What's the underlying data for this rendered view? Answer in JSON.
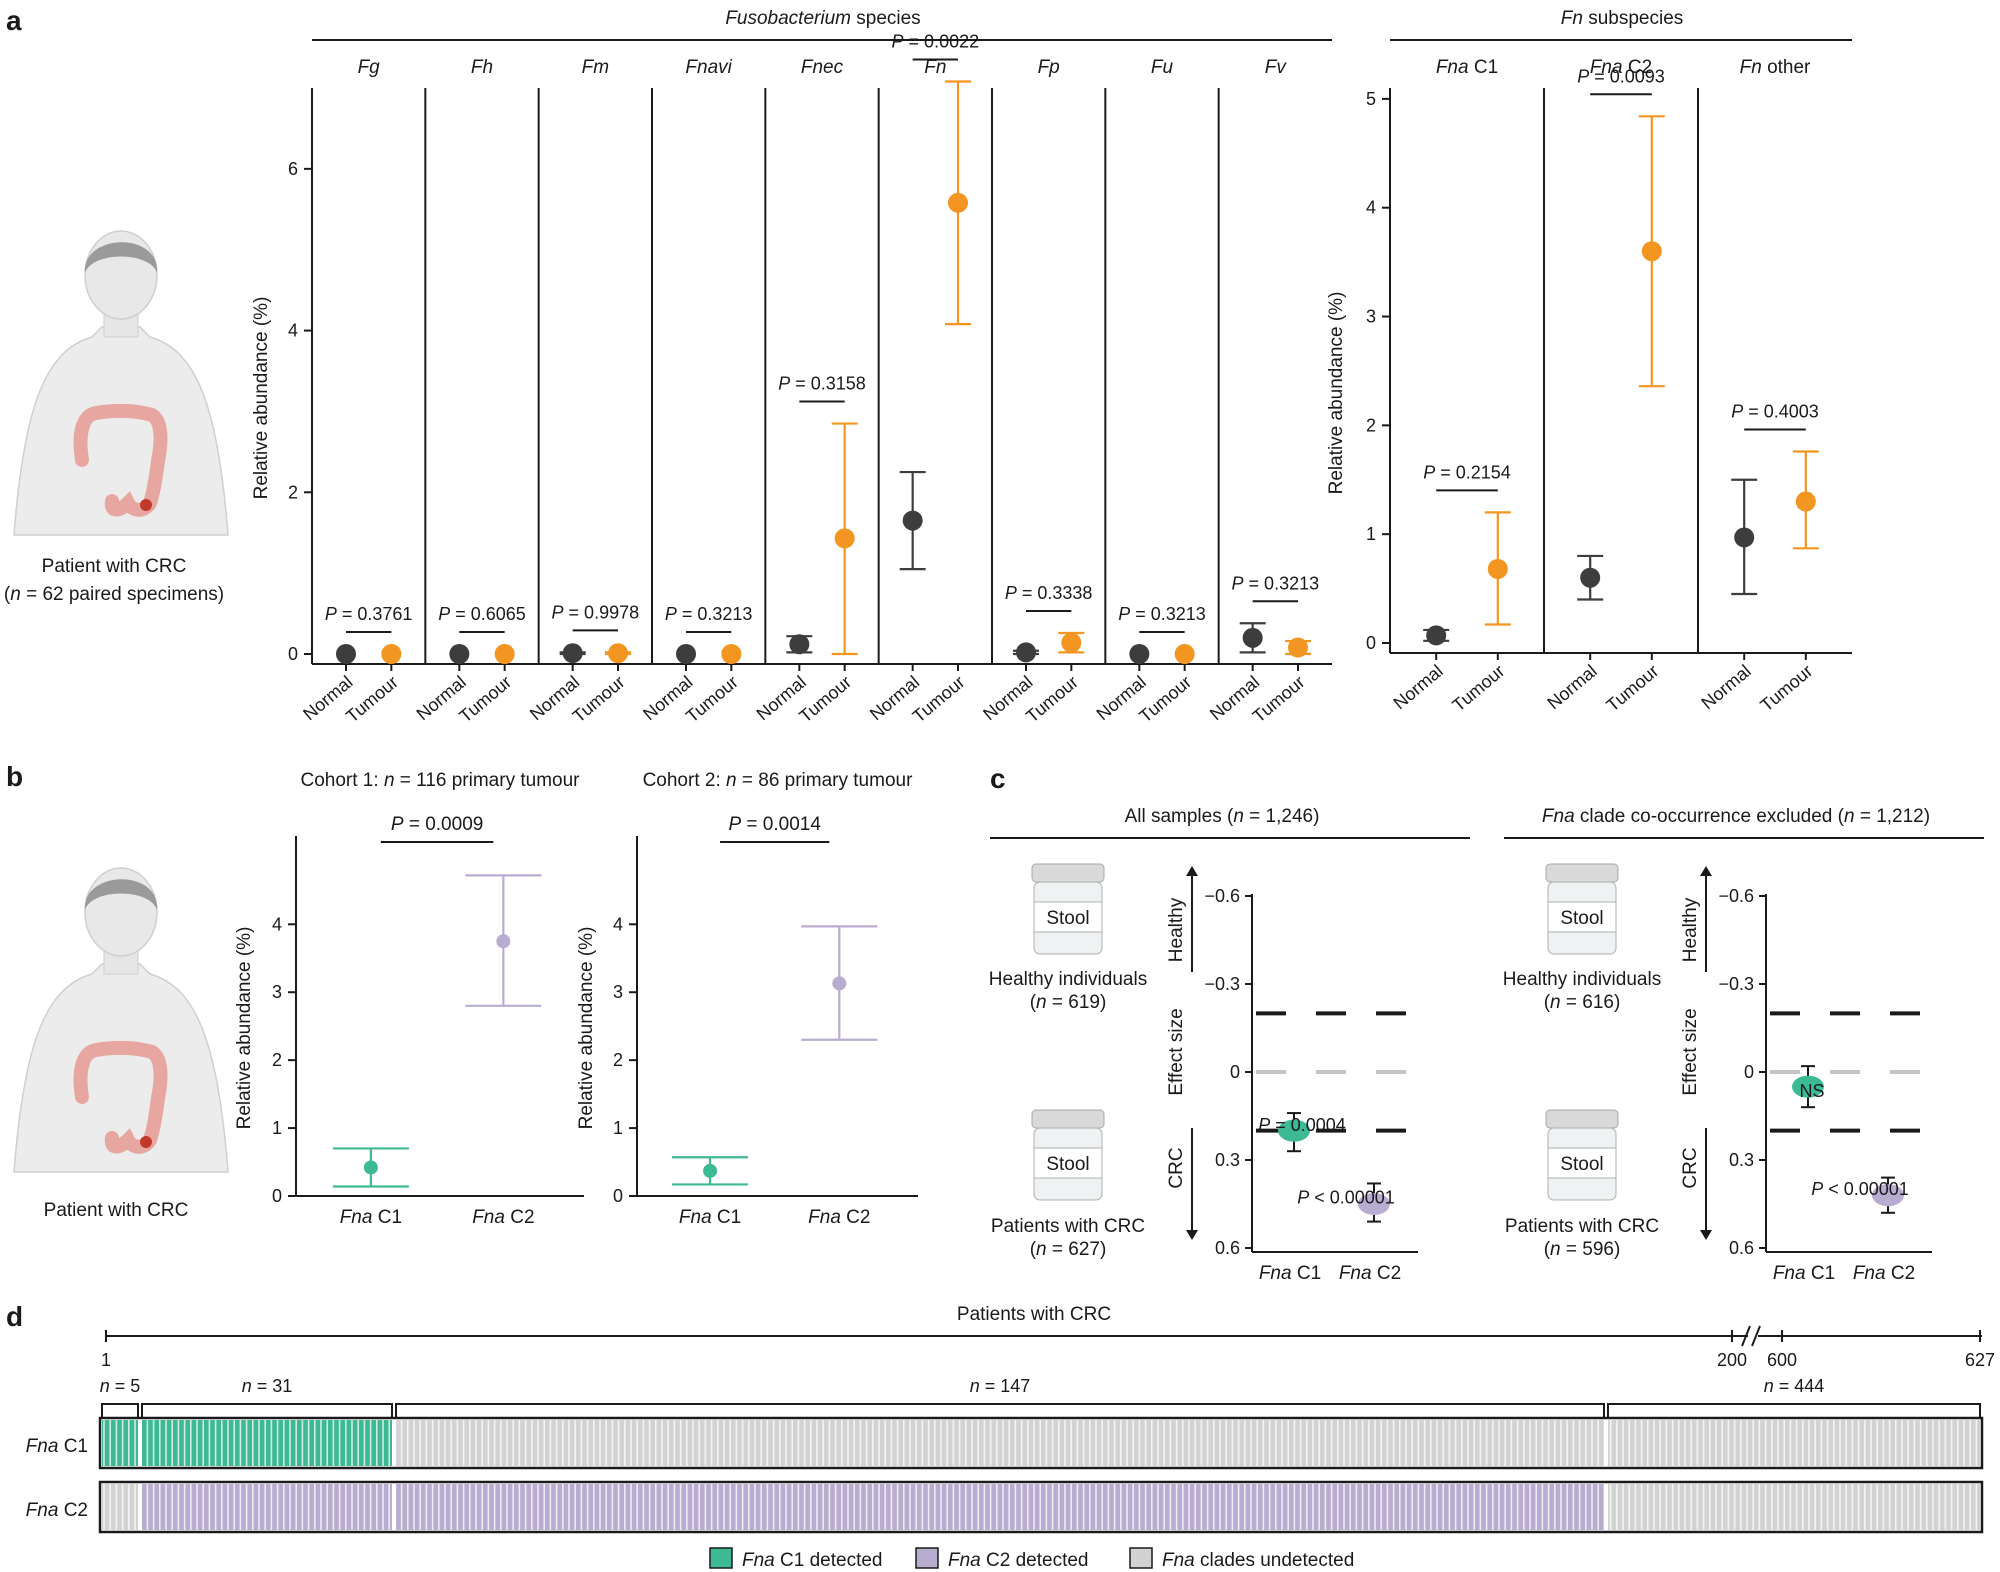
{
  "panels": {
    "a": "a",
    "b": "b",
    "c": "c",
    "d": "d"
  },
  "panel_a": {
    "species_header": {
      "italic": "Fusobacterium",
      "rest": " species"
    },
    "subspecies_header": {
      "italic": "Fn",
      "rest": " subspecies"
    },
    "ylabel": "Relative abundance (%)",
    "patient_label": "Patient with CRC",
    "patient_n": {
      "open": "(",
      "italic": "n",
      "rest": " = 62 paired specimens)"
    },
    "group_labels": [
      "Normal",
      "Tumour"
    ]
  },
  "panel_b": {
    "patient_label": "Patient with CRC",
    "ylabel": "Relative abundance (%)"
  },
  "panel_c": {
    "groups": [
      {
        "title": {
          "italic": "",
          "rest": "All samples (",
          "n_italic": "n",
          "n_rest": " = 1,246)"
        },
        "healthy_label": "Healthy individuals",
        "healthy_n": {
          "open": "(",
          "italic": "n",
          "rest": " = 619)"
        },
        "crc_label": "Patients with CRC",
        "crc_n": {
          "open": "(",
          "italic": "n",
          "rest": " = 627)"
        }
      },
      {
        "title": {
          "italic": "Fna",
          "rest": " clade co-occurrence excluded (",
          "n_italic": "n",
          "n_rest": " = 1,212)"
        },
        "healthy_label": "Healthy individuals",
        "healthy_n": {
          "open": "(",
          "italic": "n",
          "rest": " = 616)"
        },
        "crc_label": "Patients with CRC",
        "crc_n": {
          "open": "(",
          "italic": "n",
          "rest": " = 596)"
        }
      }
    ],
    "stool_label": "Stool",
    "axis_top": "Healthy",
    "axis_mid": "Effect size",
    "axis_bottom": "CRC"
  },
  "panel_d": {
    "title": "Patients with CRC",
    "axis_ticks": [
      "1",
      "200",
      "600",
      "627"
    ],
    "segments": [
      {
        "n_italic": "n",
        "rest": " = 5"
      },
      {
        "n_italic": "n",
        "rest": " = 31"
      },
      {
        "n_italic": "n",
        "rest": " = 147"
      },
      {
        "n_italic": "n",
        "rest": " = 444"
      }
    ],
    "rows": [
      {
        "italic": "Fna",
        "rest": " C1"
      },
      {
        "italic": "Fna",
        "rest": " C2"
      }
    ],
    "legend": [
      {
        "italic": "Fna",
        "rest": " C1 detected",
        "color": "#3dba94"
      },
      {
        "italic": "Fna",
        "rest": " C2 detected",
        "color": "#b8acd1"
      },
      {
        "italic": "Fna",
        "rest": " clades undetected",
        "color": "#d2d2d2"
      }
    ]
  },
  "chart_data": [
    {
      "id": "a-species",
      "type": "scatter",
      "title": "Fusobacterium species",
      "ylabel": "Relative abundance (%)",
      "ylim": [
        -0.1,
        7.8
      ],
      "yticks": [
        0,
        2,
        4,
        6
      ],
      "categories": [
        "Fg",
        "Fh",
        "Fm",
        "Fnavi",
        "Fnec",
        "Fn",
        "Fp",
        "Fu",
        "Fv"
      ],
      "series": [
        {
          "name": "Normal",
          "color": "#3d3d3d",
          "values": [
            0.0,
            0.0,
            0.01,
            0.0,
            0.12,
            1.65,
            0.02,
            0.0,
            0.2
          ],
          "lower": [
            0.0,
            0.0,
            0.0,
            0.0,
            0.02,
            1.05,
            0.0,
            0.0,
            0.02
          ],
          "upper": [
            0.0,
            0.0,
            0.02,
            0.0,
            0.22,
            2.25,
            0.04,
            0.0,
            0.38
          ]
        },
        {
          "name": "Tumour",
          "color": "#f39521",
          "values": [
            0.0,
            0.0,
            0.01,
            0.0,
            1.43,
            5.58,
            0.14,
            0.0,
            0.08
          ],
          "lower": [
            0.0,
            0.0,
            0.0,
            0.0,
            0.0,
            4.08,
            0.02,
            0.0,
            0.0
          ],
          "upper": [
            0.0,
            0.0,
            0.02,
            0.0,
            2.85,
            7.08,
            0.26,
            0.0,
            0.16
          ]
        }
      ],
      "pvalues": [
        "0.3761",
        "0.6065",
        "0.9978",
        "0.3213",
        "0.3158",
        "0.0022",
        "0.3338",
        "0.3213",
        "0.3213"
      ]
    },
    {
      "id": "a-subspecies",
      "type": "scatter",
      "title": "Fn subspecies",
      "ylabel": "Relative abundance (%)",
      "ylim": [
        -0.1,
        5.5
      ],
      "yticks": [
        0,
        1,
        2,
        3,
        4,
        5
      ],
      "categories": [
        "Fna C1",
        "Fna C2",
        "Fn other"
      ],
      "series": [
        {
          "name": "Normal",
          "color": "#3d3d3d",
          "values": [
            0.07,
            0.6,
            0.97
          ],
          "lower": [
            0.02,
            0.4,
            0.45
          ],
          "upper": [
            0.12,
            0.8,
            1.5
          ]
        },
        {
          "name": "Tumour",
          "color": "#f39521",
          "values": [
            0.68,
            3.6,
            1.3
          ],
          "lower": [
            0.17,
            2.36,
            0.87
          ],
          "upper": [
            1.2,
            4.84,
            1.76
          ]
        }
      ],
      "pvalues": [
        "0.2154",
        "0.0093",
        "0.4003"
      ]
    },
    {
      "id": "b-cohort1",
      "type": "scatter",
      "title": "Cohort 1: n = 116 primary tumour",
      "ylabel": "Relative abundance (%)",
      "ylim": [
        0,
        5.3
      ],
      "yticks": [
        0,
        1,
        2,
        3,
        4
      ],
      "categories": [
        "Fna C1",
        "Fna C2"
      ],
      "values": [
        0.42,
        3.75
      ],
      "lower": [
        0.14,
        2.8
      ],
      "upper": [
        0.7,
        4.72
      ],
      "colors": [
        "#3dba94",
        "#b8acd1"
      ],
      "pvalue": "0.0009"
    },
    {
      "id": "b-cohort2",
      "type": "scatter",
      "title": "Cohort 2: n = 86 primary tumour",
      "ylabel": "Relative abundance (%)",
      "ylim": [
        0,
        5.3
      ],
      "yticks": [
        0,
        1,
        2,
        3,
        4
      ],
      "categories": [
        "Fna C1",
        "Fna C2"
      ],
      "values": [
        0.37,
        3.13
      ],
      "lower": [
        0.17,
        2.3
      ],
      "upper": [
        0.57,
        3.97
      ],
      "colors": [
        "#3dba94",
        "#b8acd1"
      ],
      "pvalue": "0.0014"
    },
    {
      "id": "c-all",
      "type": "scatter",
      "title": "All samples (n = 1,246)",
      "ylabel": "Effect size",
      "ylim": [
        -0.65,
        0.65
      ],
      "yticks": [
        -0.6,
        -0.3,
        0,
        0.3,
        0.6
      ],
      "ytick_labels": [
        "−0.6",
        "−0.3",
        "0",
        "0.3",
        "0.6"
      ],
      "categories": [
        "Fna C1",
        "Fna C2"
      ],
      "values": [
        0.2,
        0.45
      ],
      "lower": [
        0.14,
        0.38
      ],
      "upper": [
        0.27,
        0.51
      ],
      "colors": [
        "#3dba94",
        "#b8acd1"
      ],
      "thresholds": [
        -0.2,
        0.2
      ],
      "annotations": [
        "P = 0.0004",
        "P < 0.00001"
      ]
    },
    {
      "id": "c-excl",
      "type": "scatter",
      "title": "Fna clade co-occurrence excluded (n = 1,212)",
      "ylabel": "Effect size",
      "ylim": [
        -0.65,
        0.65
      ],
      "yticks": [
        -0.6,
        -0.3,
        0,
        0.3,
        0.6
      ],
      "ytick_labels": [
        "−0.6",
        "−0.3",
        "0",
        "0.3",
        "0.6"
      ],
      "categories": [
        "Fna C1",
        "Fna C2"
      ],
      "values": [
        0.05,
        0.42
      ],
      "lower": [
        -0.02,
        0.36
      ],
      "upper": [
        0.12,
        0.48
      ],
      "colors": [
        "#3dba94",
        "#b8acd1"
      ],
      "thresholds": [
        -0.2,
        0.2
      ],
      "annotations": [
        "NS",
        "P < 0.00001"
      ]
    },
    {
      "id": "d-detection",
      "type": "heatmap",
      "title": "Patients with CRC",
      "rows": [
        "Fna C1",
        "Fna C2"
      ],
      "groups": [
        {
          "n": 5,
          "C1": "detected",
          "C2": "undetected"
        },
        {
          "n": 31,
          "C1": "detected",
          "C2": "detected"
        },
        {
          "n": 147,
          "C1": "undetected",
          "C2": "detected"
        },
        {
          "n": 444,
          "C1": "undetected",
          "C2": "undetected"
        }
      ],
      "total": 627
    }
  ]
}
